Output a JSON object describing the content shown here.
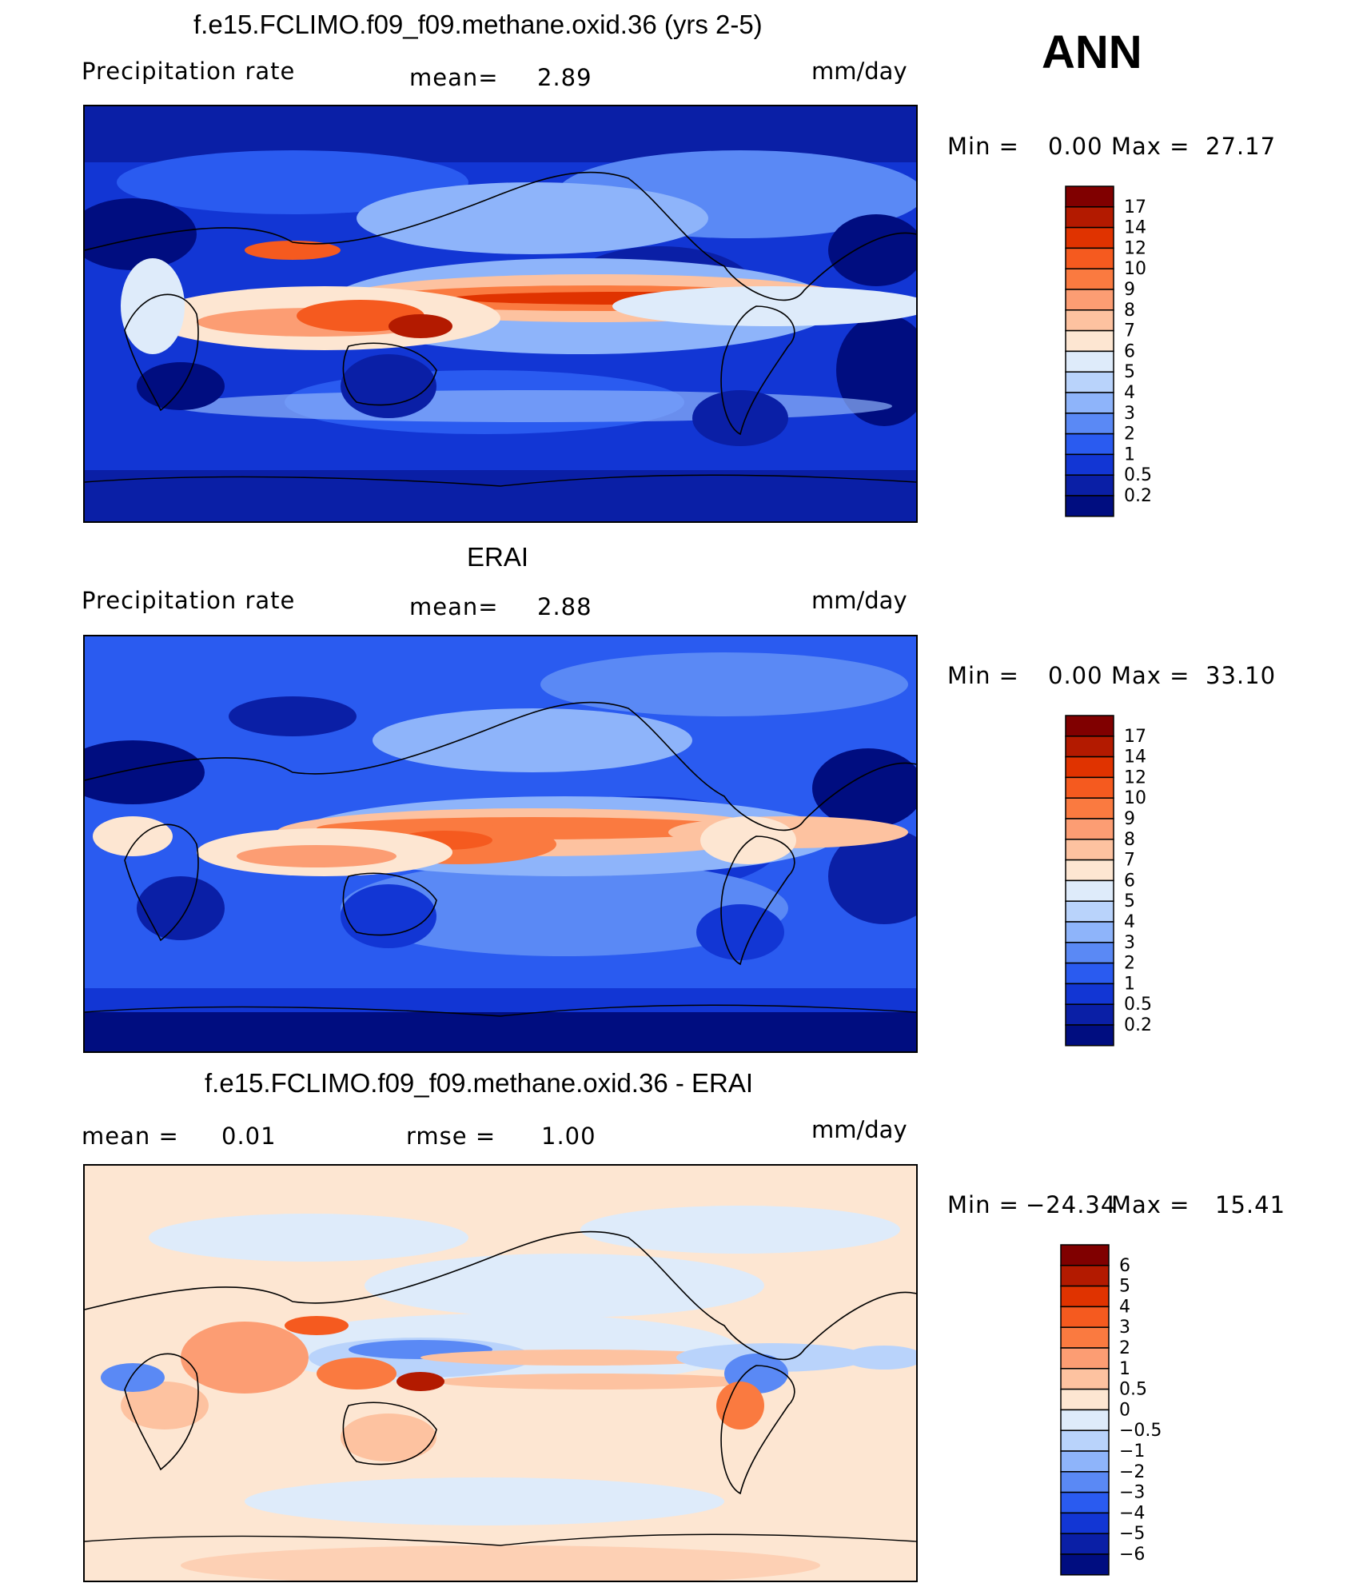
{
  "header": {
    "case_label": "ANN"
  },
  "panels": [
    {
      "title": "f.e15.FCLIMO.f09_f09.methane.oxid.36 (yrs 2-5)",
      "left_label": "Precipitation  rate",
      "mid_label": "mean=",
      "mid_value": "2.89",
      "units": "mm/day",
      "stats": {
        "min_label": "Min  =",
        "min_value": "0.00",
        "max_label": "Max  =",
        "max_value": "27.17"
      },
      "colorbar": {
        "ticks": [
          "17",
          "14",
          "12",
          "10",
          "9",
          "8",
          "7",
          "6",
          "5",
          "4",
          "3",
          "2",
          "1",
          "0.5",
          "0.2"
        ],
        "colors": [
          "#800000",
          "#b31a00",
          "#e03300",
          "#f55a1f",
          "#fa7a40",
          "#fc9d73",
          "#fdc2a0",
          "#fde6d2",
          "#deebfa",
          "#b9d3fb",
          "#8eb4fa",
          "#5a89f5",
          "#2a5bf0",
          "#1236d4",
          "#0a1fa6",
          "#000d80"
        ]
      }
    },
    {
      "title": "ERAI",
      "left_label": "Precipitation  rate",
      "mid_label": "mean=",
      "mid_value": "2.88",
      "units": "mm/day",
      "stats": {
        "min_label": "Min  =",
        "min_value": "0.00",
        "max_label": "Max  =",
        "max_value": "33.10"
      },
      "colorbar": {
        "ticks": [
          "17",
          "14",
          "12",
          "10",
          "9",
          "8",
          "7",
          "6",
          "5",
          "4",
          "3",
          "2",
          "1",
          "0.5",
          "0.2"
        ],
        "colors": [
          "#800000",
          "#b31a00",
          "#e03300",
          "#f55a1f",
          "#fa7a40",
          "#fc9d73",
          "#fdc2a0",
          "#fde6d2",
          "#deebfa",
          "#b9d3fb",
          "#8eb4fa",
          "#5a89f5",
          "#2a5bf0",
          "#1236d4",
          "#0a1fa6",
          "#000d80"
        ]
      }
    },
    {
      "title": "f.e15.FCLIMO.f09_f09.methane.oxid.36 - ERAI",
      "left_label": "mean  =",
      "left_value": "0.01",
      "mid_label": "rmse  =",
      "mid_value": "1.00",
      "units": "mm/day",
      "stats": {
        "min_label": "Min  =",
        "min_value": "−24.34",
        "max_label": "Max  =",
        "max_value": "15.41"
      },
      "colorbar": {
        "ticks": [
          "6",
          "5",
          "4",
          "3",
          "2",
          "1",
          "0.5",
          "0",
          "−0.5",
          "−1",
          "−2",
          "−3",
          "−4",
          "−5",
          "−6"
        ],
        "colors": [
          "#800000",
          "#b31a00",
          "#e03300",
          "#f55a1f",
          "#fa7a40",
          "#fc9d73",
          "#fdc2a0",
          "#fde6d2",
          "#deebfa",
          "#b9d3fb",
          "#8eb4fa",
          "#5a89f5",
          "#2a5bf0",
          "#1236d4",
          "#0a1fa6",
          "#000d80"
        ]
      }
    }
  ],
  "chart_data": [
    {
      "type": "heatmap",
      "title": "f.e15.FCLIMO.f09_f09.methane.oxid.36 (yrs 2-5)",
      "variable": "Precipitation  rate",
      "units": "mm/day",
      "mean": 2.89,
      "min": 0.0,
      "max": 27.17,
      "levels": [
        0.2,
        0.5,
        1,
        2,
        3,
        4,
        5,
        6,
        7,
        8,
        9,
        10,
        12,
        14,
        17
      ]
    },
    {
      "type": "heatmap",
      "title": "ERAI",
      "variable": "Precipitation  rate",
      "units": "mm/day",
      "mean": 2.88,
      "min": 0.0,
      "max": 33.1,
      "levels": [
        0.2,
        0.5,
        1,
        2,
        3,
        4,
        5,
        6,
        7,
        8,
        9,
        10,
        12,
        14,
        17
      ]
    },
    {
      "type": "heatmap",
      "title": "f.e15.FCLIMO.f09_f09.methane.oxid.36 - ERAI",
      "units": "mm/day",
      "mean": 0.01,
      "rmse": 1.0,
      "min": -24.34,
      "max": 15.41,
      "levels": [
        -6,
        -5,
        -4,
        -3,
        -2,
        -1,
        -0.5,
        0,
        0.5,
        1,
        2,
        3,
        4,
        5,
        6
      ]
    }
  ]
}
